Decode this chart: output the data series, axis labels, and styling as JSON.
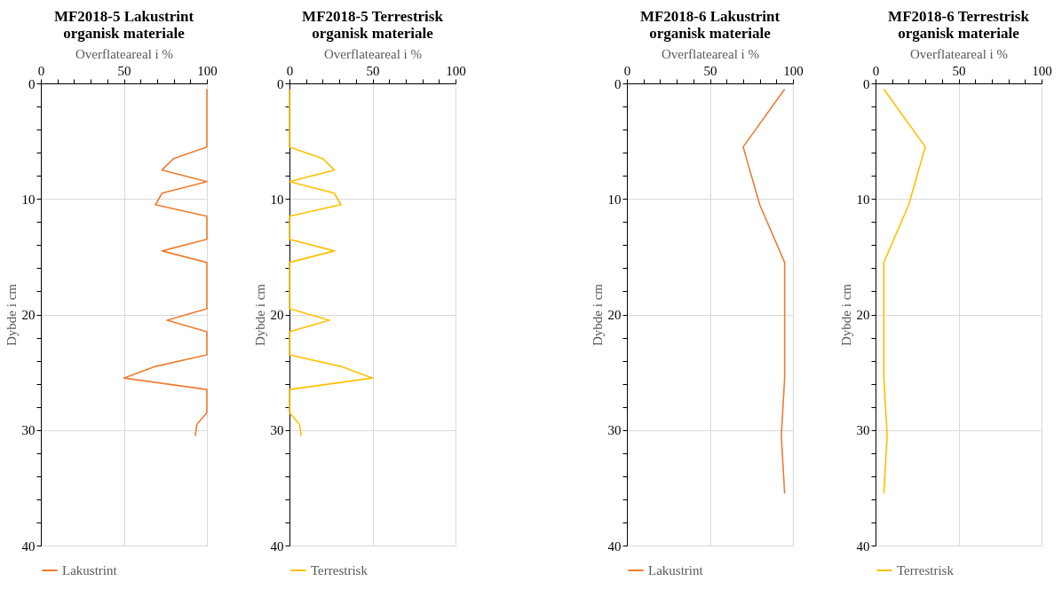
{
  "chart_data": [
    {
      "type": "line",
      "title": "MF2018-5 Lakustrint\norganisk materiale",
      "xlabel": "Overflateareal i %",
      "ylabel": "Dybde i cm",
      "xlim": [
        0,
        100
      ],
      "ylim": [
        40,
        0
      ],
      "xticks": [
        0,
        {
          "value": 10,
          "label": null
        },
        {
          "value": 20,
          "label": null
        },
        {
          "value": 30,
          "label": null
        },
        {
          "value": 40,
          "label": null
        },
        50,
        {
          "value": 60,
          "label": null
        },
        {
          "value": 70,
          "label": null
        },
        {
          "value": 80,
          "label": null
        },
        {
          "value": 90,
          "label": null
        },
        100
      ],
      "yticks": [
        0,
        {
          "value": 2,
          "label": null
        },
        {
          "value": 4,
          "label": null
        },
        {
          "value": 6,
          "label": null
        },
        {
          "value": 8,
          "label": null
        },
        10,
        {
          "value": 12,
          "label": null
        },
        {
          "value": 14,
          "label": null
        },
        {
          "value": 16,
          "label": null
        },
        {
          "value": 18,
          "label": null
        },
        20,
        {
          "value": 22,
          "label": null
        },
        {
          "value": 24,
          "label": null
        },
        {
          "value": 26,
          "label": null
        },
        {
          "value": 28,
          "label": null
        },
        30,
        {
          "value": 32,
          "label": null
        },
        {
          "value": 34,
          "label": null
        },
        {
          "value": 36,
          "label": null
        },
        {
          "value": 38,
          "label": null
        },
        40
      ],
      "grid": true,
      "legend": "bottom",
      "series": [
        {
          "name": "Lakustrint",
          "color": "#ed7d31",
          "x": [
            100,
            100,
            80,
            73,
            100,
            73,
            69,
            100,
            100,
            73,
            100,
            100,
            76,
            100,
            100,
            69,
            50,
            100,
            100,
            94,
            93
          ],
          "values": [
            0.5,
            5.5,
            6.5,
            7.5,
            8.5,
            9.5,
            10.5,
            11.5,
            13.5,
            14.5,
            15.5,
            19.5,
            20.5,
            21.5,
            23.5,
            24.5,
            25.5,
            26.5,
            28.5,
            29.5,
            30.5
          ]
        }
      ]
    },
    {
      "type": "line",
      "title": "MF2018-5 Terrestrisk\norganisk materiale",
      "xlabel": "Overflateareal i %",
      "ylabel": "Dybde i cm",
      "xlim": [
        0,
        100
      ],
      "ylim": [
        40,
        0
      ],
      "xticks": [
        0,
        {
          "value": 10,
          "label": null
        },
        {
          "value": 20,
          "label": null
        },
        {
          "value": 30,
          "label": null
        },
        {
          "value": 40,
          "label": null
        },
        50,
        {
          "value": 60,
          "label": null
        },
        {
          "value": 70,
          "label": null
        },
        {
          "value": 80,
          "label": null
        },
        {
          "value": 90,
          "label": null
        },
        100
      ],
      "yticks": [
        0,
        {
          "value": 2,
          "label": null
        },
        {
          "value": 4,
          "label": null
        },
        {
          "value": 6,
          "label": null
        },
        {
          "value": 8,
          "label": null
        },
        10,
        {
          "value": 12,
          "label": null
        },
        {
          "value": 14,
          "label": null
        },
        {
          "value": 16,
          "label": null
        },
        {
          "value": 18,
          "label": null
        },
        20,
        {
          "value": 22,
          "label": null
        },
        {
          "value": 24,
          "label": null
        },
        {
          "value": 26,
          "label": null
        },
        {
          "value": 28,
          "label": null
        },
        30,
        {
          "value": 32,
          "label": null
        },
        {
          "value": 34,
          "label": null
        },
        {
          "value": 36,
          "label": null
        },
        {
          "value": 38,
          "label": null
        },
        40
      ],
      "grid": true,
      "legend": "bottom",
      "series": [
        {
          "name": "Terrestrisk",
          "color": "#ffc000",
          "x": [
            0,
            0,
            20,
            27,
            0,
            27,
            31,
            0,
            0,
            27,
            0,
            0,
            24,
            0,
            0,
            31,
            50,
            0,
            0,
            6,
            7
          ],
          "values": [
            0.5,
            5.5,
            6.5,
            7.5,
            8.5,
            9.5,
            10.5,
            11.5,
            13.5,
            14.5,
            15.5,
            19.5,
            20.5,
            21.5,
            23.5,
            24.5,
            25.5,
            26.5,
            28.5,
            29.5,
            30.5
          ]
        }
      ]
    },
    {
      "type": "line",
      "title": "MF2018-6 Lakustrint\norganisk materiale",
      "xlabel": "Overflateareal i %",
      "ylabel": "Dybde i cm",
      "xlim": [
        0,
        100
      ],
      "ylim": [
        40,
        0
      ],
      "xticks": [
        0,
        {
          "value": 10,
          "label": null
        },
        {
          "value": 20,
          "label": null
        },
        {
          "value": 30,
          "label": null
        },
        {
          "value": 40,
          "label": null
        },
        50,
        {
          "value": 60,
          "label": null
        },
        {
          "value": 70,
          "label": null
        },
        {
          "value": 80,
          "label": null
        },
        {
          "value": 90,
          "label": null
        },
        100
      ],
      "yticks": [
        0,
        {
          "value": 2,
          "label": null
        },
        {
          "value": 4,
          "label": null
        },
        {
          "value": 6,
          "label": null
        },
        {
          "value": 8,
          "label": null
        },
        10,
        {
          "value": 12,
          "label": null
        },
        {
          "value": 14,
          "label": null
        },
        {
          "value": 16,
          "label": null
        },
        {
          "value": 18,
          "label": null
        },
        20,
        {
          "value": 22,
          "label": null
        },
        {
          "value": 24,
          "label": null
        },
        {
          "value": 26,
          "label": null
        },
        {
          "value": 28,
          "label": null
        },
        30,
        {
          "value": 32,
          "label": null
        },
        {
          "value": 34,
          "label": null
        },
        {
          "value": 36,
          "label": null
        },
        {
          "value": 38,
          "label": null
        },
        40
      ],
      "grid": true,
      "legend": "bottom",
      "series": [
        {
          "name": "Lakustrint",
          "color": "#ed7d31",
          "x": [
            95,
            70,
            80,
            95,
            95,
            93,
            95
          ],
          "values": [
            0.5,
            5.5,
            10.5,
            15.5,
            25.5,
            30.5,
            35.5
          ]
        }
      ]
    },
    {
      "type": "line",
      "title": "MF2018-6 Terrestrisk\norganisk materiale",
      "xlabel": "Overflateareal i %",
      "ylabel": "Dybde i cm",
      "xlim": [
        0,
        100
      ],
      "ylim": [
        40,
        0
      ],
      "xticks": [
        0,
        {
          "value": 10,
          "label": null
        },
        {
          "value": 20,
          "label": null
        },
        {
          "value": 30,
          "label": null
        },
        {
          "value": 40,
          "label": null
        },
        50,
        {
          "value": 60,
          "label": null
        },
        {
          "value": 70,
          "label": null
        },
        {
          "value": 80,
          "label": null
        },
        {
          "value": 90,
          "label": null
        },
        100
      ],
      "yticks": [
        0,
        {
          "value": 2,
          "label": null
        },
        {
          "value": 4,
          "label": null
        },
        {
          "value": 6,
          "label": null
        },
        {
          "value": 8,
          "label": null
        },
        10,
        {
          "value": 12,
          "label": null
        },
        {
          "value": 14,
          "label": null
        },
        {
          "value": 16,
          "label": null
        },
        {
          "value": 18,
          "label": null
        },
        20,
        {
          "value": 22,
          "label": null
        },
        {
          "value": 24,
          "label": null
        },
        {
          "value": 26,
          "label": null
        },
        {
          "value": 28,
          "label": null
        },
        30,
        {
          "value": 32,
          "label": null
        },
        {
          "value": 34,
          "label": null
        },
        {
          "value": 36,
          "label": null
        },
        {
          "value": 38,
          "label": null
        },
        40
      ],
      "grid": true,
      "legend": "bottom",
      "series": [
        {
          "name": "Terrestrisk",
          "color": "#ffc000",
          "x": [
            5,
            30,
            20,
            5,
            5,
            7,
            5
          ],
          "values": [
            0.5,
            5.5,
            10.5,
            15.5,
            25.5,
            30.5,
            35.5
          ]
        }
      ]
    }
  ]
}
